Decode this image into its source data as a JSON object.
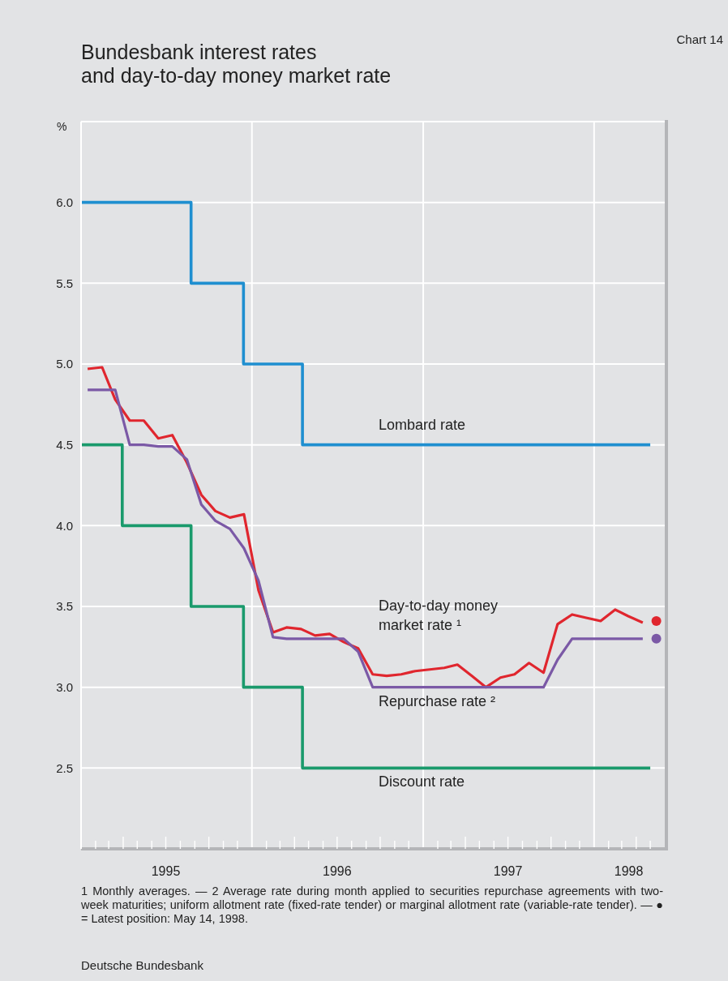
{
  "chart_data": {
    "type": "line",
    "title": "Bundesbank interest rates\nand day-to-day money market rate",
    "ylabel": "%",
    "xlim": [
      "1995-01-01",
      "1998-06-01"
    ],
    "xticks": [
      {
        "value": "1995-02-01",
        "label": null
      },
      {
        "value": "1995-03-01",
        "label": null
      },
      {
        "value": "1995-04-01",
        "label": null
      },
      {
        "value": "1995-05-01",
        "label": null
      },
      {
        "value": "1995-06-01",
        "label": null
      },
      {
        "value": "1995-08-01",
        "label": null
      },
      {
        "value": "1995-09-01",
        "label": null
      },
      {
        "value": "1995-10-01",
        "label": null
      },
      {
        "value": "1995-11-01",
        "label": null
      },
      {
        "value": "1995-12-01",
        "label": null
      },
      {
        "value": "1996-01-01",
        "label": null
      },
      {
        "value": "1996-02-01",
        "label": null
      },
      {
        "value": "1996-03-01",
        "label": null
      },
      {
        "value": "1996-04-01",
        "label": null
      },
      {
        "value": "1996-05-01",
        "label": null
      },
      {
        "value": "1996-06-01",
        "label": null
      },
      {
        "value": "1996-08-01",
        "label": null
      },
      {
        "value": "1996-09-01",
        "label": null
      },
      {
        "value": "1996-10-01",
        "label": null
      },
      {
        "value": "1996-11-01",
        "label": null
      },
      {
        "value": "1996-12-01",
        "label": null
      },
      {
        "value": "1997-01-01",
        "label": null
      },
      {
        "value": "1997-02-01",
        "label": null
      },
      {
        "value": "1997-03-01",
        "label": null
      },
      {
        "value": "1997-04-01",
        "label": null
      },
      {
        "value": "1997-05-01",
        "label": null
      },
      {
        "value": "1997-06-01",
        "label": null
      },
      {
        "value": "1997-08-01",
        "label": null
      },
      {
        "value": "1997-09-01",
        "label": null
      },
      {
        "value": "1997-10-01",
        "label": null
      },
      {
        "value": "1997-11-01",
        "label": null
      },
      {
        "value": "1997-12-01",
        "label": null
      },
      {
        "value": "1998-01-01",
        "label": null
      },
      {
        "value": "1998-02-01",
        "label": null
      },
      {
        "value": "1998-03-01",
        "label": null
      },
      {
        "value": "1998-04-01",
        "label": null
      },
      {
        "value": "1998-05-01",
        "label": null
      },
      {
        "value": "1995-07-01",
        "label": "1995"
      },
      {
        "value": "1996-07-01",
        "label": "1996"
      },
      {
        "value": "1997-07-01",
        "label": "1997"
      },
      {
        "value": "1998-03-16",
        "label": "1998"
      }
    ],
    "ylim": [
      2.0,
      6.5
    ],
    "yticks": [
      {
        "value": 2.5,
        "label": "2.5"
      },
      {
        "value": 3,
        "label": "3.0"
      },
      {
        "value": 3.5,
        "label": "3.5"
      },
      {
        "value": 4,
        "label": "4.0"
      },
      {
        "value": 4.5,
        "label": "4.5"
      },
      {
        "value": 5,
        "label": "5.0"
      },
      {
        "value": 5.5,
        "label": "5.5"
      },
      {
        "value": 6,
        "label": "6.0"
      }
    ],
    "grid": true,
    "legend": false,
    "series": [
      {
        "name": "Lombard rate",
        "type": "step",
        "color": "#1f8fd0",
        "x": [
          "1995-01-01",
          "1995-08-24",
          "1995-12-14",
          "1996-04-18",
          "1998-05-01"
        ],
        "values": [
          6.0,
          5.5,
          5.0,
          4.5,
          4.5
        ]
      },
      {
        "name": "Day-to-day money market rate ¹",
        "color": "#e0262e",
        "x": [
          "1995-01-15",
          "1995-02-15",
          "1995-03-15",
          "1995-04-15",
          "1995-05-15",
          "1995-06-15",
          "1995-07-15",
          "1995-08-15",
          "1995-09-15",
          "1995-10-15",
          "1995-11-15",
          "1995-12-15",
          "1996-01-15",
          "1996-02-15",
          "1996-03-15",
          "1996-04-15",
          "1996-05-15",
          "1996-06-15",
          "1996-07-15",
          "1996-08-15",
          "1996-09-15",
          "1996-10-15",
          "1996-11-15",
          "1996-12-15",
          "1997-01-15",
          "1997-02-15",
          "1997-03-15",
          "1997-04-15",
          "1997-05-15",
          "1997-06-15",
          "1997-07-15",
          "1997-08-15",
          "1997-09-15",
          "1997-10-15",
          "1997-11-15",
          "1997-12-15",
          "1998-01-15",
          "1998-02-15",
          "1998-03-15",
          "1998-04-15"
        ],
        "values": [
          4.97,
          4.98,
          4.78,
          4.65,
          4.65,
          4.54,
          4.56,
          4.39,
          4.19,
          4.09,
          4.05,
          4.07,
          3.6,
          3.34,
          3.37,
          3.36,
          3.32,
          3.33,
          3.28,
          3.24,
          3.08,
          3.07,
          3.08,
          3.1,
          3.11,
          3.12,
          3.14,
          3.07,
          3.0,
          3.06,
          3.08,
          3.15,
          3.09,
          3.39,
          3.45,
          3.43,
          3.41,
          3.48,
          3.44,
          3.4
        ]
      },
      {
        "name": "Repurchase rate ²",
        "color": "#7b59a6",
        "x": [
          "1995-01-15",
          "1995-02-15",
          "1995-03-15",
          "1995-04-15",
          "1995-05-15",
          "1995-06-15",
          "1995-07-15",
          "1995-08-15",
          "1995-09-15",
          "1995-10-15",
          "1995-11-15",
          "1995-12-15",
          "1996-01-15",
          "1996-02-15",
          "1996-03-15",
          "1996-04-15",
          "1996-05-15",
          "1996-06-15",
          "1996-07-15",
          "1996-08-15",
          "1996-09-15",
          "1996-10-15",
          "1996-11-15",
          "1996-12-15",
          "1997-01-15",
          "1997-02-15",
          "1997-03-15",
          "1997-04-15",
          "1997-05-15",
          "1997-06-15",
          "1997-07-15",
          "1997-08-15",
          "1997-09-15",
          "1997-10-15",
          "1997-11-15",
          "1997-12-15",
          "1998-01-15",
          "1998-02-15",
          "1998-03-15",
          "1998-04-15"
        ],
        "values": [
          4.84,
          4.84,
          4.84,
          4.5,
          4.5,
          4.49,
          4.49,
          4.41,
          4.13,
          4.03,
          3.98,
          3.86,
          3.66,
          3.31,
          3.3,
          3.3,
          3.3,
          3.3,
          3.3,
          3.22,
          3.0,
          3.0,
          3.0,
          3.0,
          3.0,
          3.0,
          3.0,
          3.0,
          3.0,
          3.0,
          3.0,
          3.0,
          3.0,
          3.17,
          3.3,
          3.3,
          3.3,
          3.3,
          3.3,
          3.3
        ]
      },
      {
        "name": "Discount rate",
        "type": "step",
        "color": "#1a9a6c",
        "x": [
          "1995-01-01",
          "1995-03-30",
          "1995-08-24",
          "1995-12-14",
          "1996-04-18",
          "1998-05-01"
        ],
        "values": [
          4.5,
          4.0,
          3.5,
          3.0,
          2.5,
          2.5
        ]
      },
      {
        "type": "scatter",
        "color": "#e0262e",
        "x": [
          "1998-05-14"
        ],
        "values": [
          3.41
        ]
      },
      {
        "type": "scatter",
        "color": "#7b59a6",
        "x": [
          "1998-05-14"
        ],
        "values": [
          3.3
        ]
      }
    ],
    "annotations": [
      "Chart 14",
      "1 Monthly averages. — 2 Average rate during month applied to securities repurchase agreements with two-week maturities; uniform allotment rate (fixed-rate tender) or marginal allotment rate (variable-rate tender). — ● = Latest position: May 14, 1998.",
      "Deutsche Bundesbank"
    ]
  }
}
